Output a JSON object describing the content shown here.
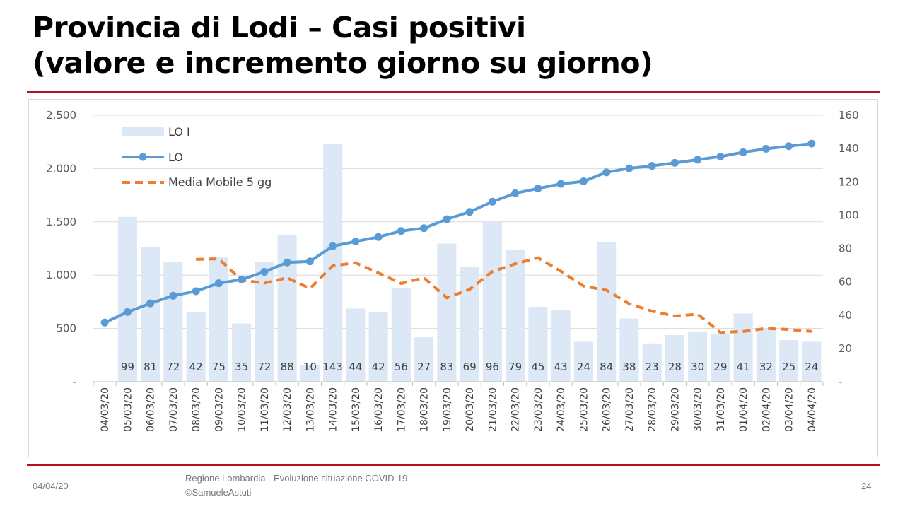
{
  "title_line1": "Provincia di Lodi – Casi positivi",
  "title_line2": "(valore e incremento giorno su giorno)",
  "footer": {
    "date": "04/04/20",
    "source": "Regione Lombardia - Evoluzione situazione COVID-19",
    "copyright": "©SamueleAstuti",
    "page": "24"
  },
  "colors": {
    "bars": "#dce8f5",
    "line": "#5b9bd5",
    "moving_avg": "#ed7d31",
    "rule": "#b3121b"
  },
  "chart_data": {
    "type": "bar+line",
    "categories": [
      "04/03/20",
      "05/03/20",
      "06/03/20",
      "07/03/20",
      "08/03/20",
      "09/03/20",
      "10/03/20",
      "11/03/20",
      "12/03/20",
      "13/03/20",
      "14/03/20",
      "15/03/20",
      "16/03/20",
      "17/03/20",
      "18/03/20",
      "19/03/20",
      "20/03/20",
      "21/03/20",
      "22/03/20",
      "23/03/20",
      "24/03/20",
      "25/03/20",
      "26/03/20",
      "27/03/20",
      "28/03/20",
      "29/03/20",
      "30/03/20",
      "31/03/20",
      "01/04/20",
      "02/04/20",
      "03/04/20",
      "04/04/20"
    ],
    "series": [
      {
        "name": "LO I",
        "type": "bar",
        "axis": "right",
        "values": [
          null,
          99,
          81,
          72,
          42,
          75,
          35,
          72,
          88,
          10,
          143,
          44,
          42,
          56,
          27,
          83,
          69,
          96,
          79,
          45,
          43,
          24,
          84,
          38,
          23,
          28,
          30,
          29,
          41,
          32,
          25,
          24
        ]
      },
      {
        "name": "LO",
        "type": "line",
        "axis": "left",
        "values": [
          555,
          654,
          735,
          807,
          849,
          924,
          959,
          1031,
          1119,
          1129,
          1272,
          1316,
          1358,
          1414,
          1441,
          1524,
          1593,
          1689,
          1768,
          1813,
          1856,
          1880,
          1964,
          2002,
          2025,
          2053,
          2083,
          2112,
          2153,
          2185,
          2210,
          2234
        ]
      },
      {
        "name": "Media Mobile 5 gg",
        "type": "dashed-line",
        "axis": "right",
        "values": [
          null,
          null,
          null,
          null,
          73.5,
          73.8,
          61,
          59.2,
          62.4,
          56,
          69.6,
          71.4,
          65.4,
          59,
          62.4,
          50.4,
          55.4,
          66.2,
          70.8,
          74.4,
          66.4,
          57.4,
          55,
          46.8,
          42.4,
          39.4,
          40.6,
          29.6,
          30.2,
          32,
          31.4,
          30.2
        ]
      }
    ],
    "left_axis": {
      "ylim": [
        0,
        2500
      ],
      "ticks": [
        "-",
        "500",
        "1.000",
        "1.500",
        "2.000",
        "2.500"
      ]
    },
    "right_axis": {
      "ylim": [
        0,
        160
      ],
      "ticks": [
        "-",
        "20",
        "40",
        "60",
        "80",
        "100",
        "120",
        "140",
        "160"
      ]
    },
    "grid": "horizontal",
    "legend": "top-left",
    "data_labels": "bar values at bottom"
  }
}
